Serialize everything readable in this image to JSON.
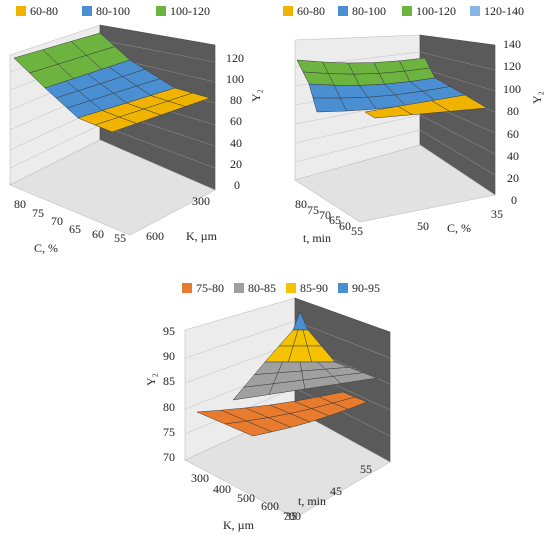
{
  "chart_data": [
    {
      "type": "surface",
      "legend": [
        {
          "label": "60-80",
          "color": "#f0b400"
        },
        {
          "label": "80-100",
          "color": "#4a8fd2"
        },
        {
          "label": "100-120",
          "color": "#6cb33f"
        }
      ],
      "z_ticks": [
        "0",
        "20",
        "40",
        "60",
        "80",
        "100",
        "120"
      ],
      "zlabel": "Y₂",
      "x_ticks": [
        "80",
        "75",
        "70",
        "65",
        "60",
        "55"
      ],
      "xlabel": "C, %",
      "y_ticks": [
        "600",
        "300"
      ],
      "ylabel": "K, µm",
      "zlim": [
        0,
        120
      ]
    },
    {
      "type": "surface",
      "legend": [
        {
          "label": "60-80",
          "color": "#f0b400"
        },
        {
          "label": "80-100",
          "color": "#4a8fd2"
        },
        {
          "label": "100-120",
          "color": "#6cb33f"
        },
        {
          "label": "120-140",
          "color": "#8ab4e6"
        }
      ],
      "z_ticks": [
        "0",
        "20",
        "40",
        "60",
        "80",
        "100",
        "120",
        "140"
      ],
      "zlabel": "Y₂",
      "x_ticks": [
        "80",
        "75",
        "70",
        "65",
        "60",
        "55"
      ],
      "xlabel": "t, min",
      "y_ticks": [
        "50",
        "35"
      ],
      "ylabel": "C, %",
      "zlim": [
        0,
        140
      ]
    },
    {
      "type": "surface",
      "legend": [
        {
          "label": "75-80",
          "color": "#e87b2e"
        },
        {
          "label": "80-85",
          "color": "#a0a0a0"
        },
        {
          "label": "85-90",
          "color": "#f5c200"
        },
        {
          "label": "90-95",
          "color": "#4a8fd2"
        }
      ],
      "z_ticks": [
        "70",
        "75",
        "80",
        "85",
        "90",
        "95"
      ],
      "zlabel": "Y₂",
      "x_ticks": [
        "300",
        "400",
        "500",
        "600",
        "700"
      ],
      "xlabel": "K, µm",
      "y_ticks": [
        "35",
        "45",
        "55"
      ],
      "ylabel": "t, min",
      "zlim": [
        70,
        95
      ]
    }
  ]
}
